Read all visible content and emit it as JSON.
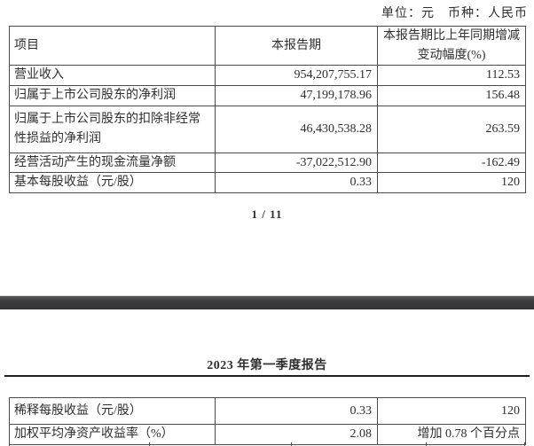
{
  "page1": {
    "unit_line": "单位：元　币种：人民币",
    "table": {
      "headers": {
        "item": "项目",
        "period": "本报告期",
        "change": "本报告期比上年同期增减\n变动幅度(%)"
      },
      "rows": [
        {
          "item": "营业收入",
          "period": "954,207,755.17",
          "change": "112.53"
        },
        {
          "item": "归属于上市公司股东的净利润",
          "period": "47,199,178.96",
          "change": "156.48"
        },
        {
          "item": "归属于上市公司股东的扣除非经常\n性损益的净利润",
          "period": "46,430,538.28",
          "change": "263.59"
        },
        {
          "item": "经营活动产生的现金流量净额",
          "period": "-37,022,512.90",
          "change": "-162.49"
        },
        {
          "item": "基本每股收益（元/股）",
          "period": "0.33",
          "change": "120"
        }
      ]
    },
    "page_indicator": "1 / 11"
  },
  "page2": {
    "title": "2023 年第一季度报告",
    "table": {
      "rows": [
        {
          "item": "稀释每股收益（元/股）",
          "period": "0.33",
          "change": "120"
        },
        {
          "item": "加权平均净资产收益率（%）",
          "period": "2.08",
          "change": "增加 0.78 个百分点"
        }
      ]
    }
  },
  "colors": {
    "text": "#2e2e2e",
    "table_border": "#4b4b4b",
    "separator_bar": "#3d3d41",
    "page_background": "#ffffff"
  }
}
